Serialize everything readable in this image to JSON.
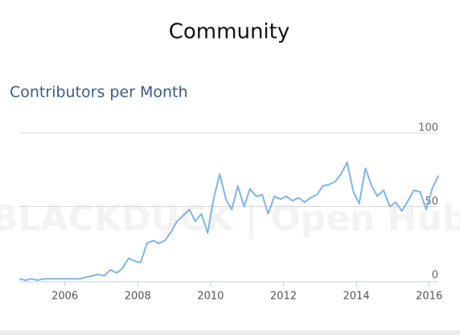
{
  "chart_data": {
    "type": "line",
    "title": "Community",
    "subtitle": "Contributors per Month",
    "watermark": "BLACKDUCK | Open Hub",
    "x": [
      2004.75,
      2004.92,
      2005.08,
      2005.25,
      2005.42,
      2005.58,
      2005.75,
      2005.92,
      2006.08,
      2006.25,
      2006.42,
      2006.58,
      2006.75,
      2006.92,
      2007.08,
      2007.25,
      2007.42,
      2007.58,
      2007.75,
      2007.92,
      2008.08,
      2008.25,
      2008.42,
      2008.58,
      2008.75,
      2008.92,
      2009.08,
      2009.25,
      2009.42,
      2009.58,
      2009.75,
      2009.92,
      2010.08,
      2010.25,
      2010.42,
      2010.58,
      2010.75,
      2010.92,
      2011.08,
      2011.25,
      2011.42,
      2011.58,
      2011.75,
      2011.92,
      2012.08,
      2012.25,
      2012.42,
      2012.58,
      2012.75,
      2012.92,
      2013.08,
      2013.25,
      2013.42,
      2013.58,
      2013.75,
      2013.92,
      2014.08,
      2014.25,
      2014.42,
      2014.58,
      2014.75,
      2014.92,
      2015.08,
      2015.25,
      2015.42,
      2015.58,
      2015.75,
      2015.92,
      2016.08,
      2016.25
    ],
    "series": [
      {
        "name": "Contributors",
        "color": "#7cb5ec",
        "values": [
          1,
          0,
          1,
          0,
          1,
          1,
          1,
          1,
          1,
          1,
          1,
          2,
          3,
          4,
          3,
          7,
          5,
          8,
          15,
          13,
          12,
          25,
          27,
          25,
          27,
          33,
          40,
          44,
          48,
          40,
          45,
          32,
          55,
          72,
          55,
          48,
          64,
          50,
          62,
          57,
          58,
          45,
          57,
          55,
          57,
          54,
          56,
          53,
          56,
          58,
          64,
          65,
          67,
          72,
          80,
          60,
          52,
          76,
          64,
          57,
          61,
          50,
          53,
          47,
          54,
          61,
          60,
          48,
          62,
          71
        ]
      }
    ],
    "xlim": [
      2004.75,
      2016.25
    ],
    "xticks": [
      2006,
      2008,
      2010,
      2012,
      2014,
      2016
    ],
    "ylim": [
      0,
      100
    ],
    "yticks": [
      0,
      50,
      100
    ],
    "grid": true
  }
}
